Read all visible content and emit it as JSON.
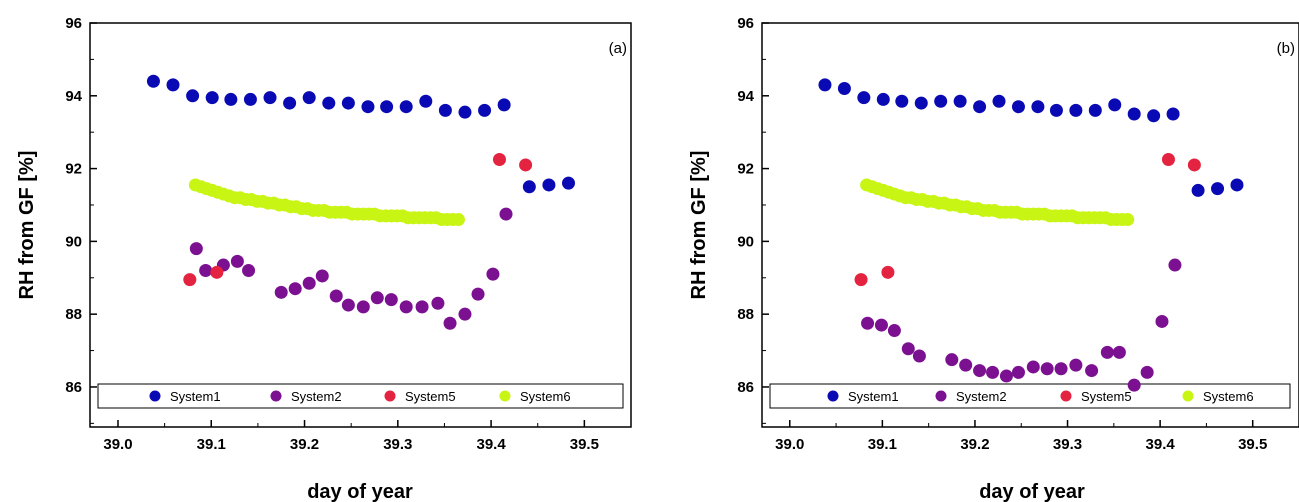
{
  "colors": {
    "System1": "#0a0ab4",
    "System2": "#7b1090",
    "System5": "#e3233f",
    "System6": "#c8f514"
  },
  "chart_data": [
    {
      "type": "scatter",
      "panel_label": "(a)",
      "xlabel": "day of year",
      "ylabel": "RH from GF [%]",
      "xlim": [
        38.97,
        39.55
      ],
      "ylim": [
        84.9,
        96
      ],
      "xticks": [
        "39.0",
        "39.1",
        "39.2",
        "39.3",
        "39.4",
        "39.5"
      ],
      "yticks": [
        "86",
        "88",
        "90",
        "92",
        "94",
        "96"
      ],
      "legend": {
        "placement": "bottom",
        "entries": [
          "System1",
          "System2",
          "System5",
          "System6"
        ]
      },
      "series": [
        {
          "name": "System1",
          "x": [
            39.038,
            39.059,
            39.08,
            39.101,
            39.121,
            39.142,
            39.163,
            39.184,
            39.205,
            39.226,
            39.247,
            39.268,
            39.288,
            39.309,
            39.33,
            39.351,
            39.372,
            39.393,
            39.414,
            39.441,
            39.462,
            39.483
          ],
          "y": [
            94.4,
            94.3,
            94.0,
            93.95,
            93.9,
            93.9,
            93.95,
            93.8,
            93.95,
            93.8,
            93.8,
            93.7,
            93.7,
            93.7,
            93.85,
            93.6,
            93.55,
            93.6,
            93.75,
            91.5,
            91.55,
            91.6
          ]
        },
        {
          "name": "System2",
          "x": [
            39.084,
            39.094,
            39.113,
            39.128,
            39.14,
            39.175,
            39.19,
            39.205,
            39.219,
            39.234,
            39.247,
            39.263,
            39.278,
            39.293,
            39.309,
            39.326,
            39.343,
            39.356,
            39.372,
            39.386,
            39.402,
            39.416
          ],
          "y": [
            89.8,
            89.2,
            89.35,
            89.45,
            89.2,
            88.6,
            88.7,
            88.85,
            89.05,
            88.5,
            88.25,
            88.2,
            88.45,
            88.4,
            88.2,
            88.2,
            88.3,
            87.75,
            88.0,
            88.55,
            89.1,
            90.75
          ]
        },
        {
          "name": "System5",
          "x": [
            39.077,
            39.106,
            39.409,
            39.437
          ],
          "y": [
            88.95,
            89.15,
            92.25,
            92.1
          ]
        },
        {
          "name": "System6",
          "x": [
            39.083,
            39.089,
            39.095,
            39.101,
            39.107,
            39.113,
            39.119,
            39.125,
            39.131,
            39.137,
            39.143,
            39.149,
            39.155,
            39.161,
            39.167,
            39.173,
            39.179,
            39.185,
            39.191,
            39.197,
            39.203,
            39.209,
            39.215,
            39.221,
            39.227,
            39.233,
            39.239,
            39.245,
            39.251,
            39.257,
            39.263,
            39.269,
            39.275,
            39.281,
            39.287,
            39.293,
            39.299,
            39.305,
            39.311,
            39.317,
            39.323,
            39.329,
            39.335,
            39.341,
            39.347,
            39.353,
            39.359,
            39.365
          ],
          "y": [
            91.55,
            91.5,
            91.45,
            91.4,
            91.35,
            91.3,
            91.25,
            91.2,
            91.2,
            91.15,
            91.15,
            91.1,
            91.1,
            91.05,
            91.05,
            91.0,
            91.0,
            90.95,
            90.95,
            90.9,
            90.9,
            90.85,
            90.85,
            90.85,
            90.8,
            90.8,
            90.8,
            90.8,
            90.75,
            90.75,
            90.75,
            90.75,
            90.75,
            90.7,
            90.7,
            90.7,
            90.7,
            90.7,
            90.65,
            90.65,
            90.65,
            90.65,
            90.65,
            90.65,
            90.6,
            90.6,
            90.6,
            90.6
          ]
        }
      ]
    },
    {
      "type": "scatter",
      "panel_label": "(b)",
      "xlabel": "day of year",
      "ylabel": "RH from GF [%]",
      "xlim": [
        38.97,
        39.55
      ],
      "ylim": [
        84.9,
        96
      ],
      "xticks": [
        "39.0",
        "39.1",
        "39.2",
        "39.3",
        "39.4",
        "39.5"
      ],
      "yticks": [
        "86",
        "88",
        "90",
        "92",
        "94",
        "96"
      ],
      "legend": {
        "placement": "bottom",
        "entries": [
          "System1",
          "System2",
          "System5",
          "System6"
        ]
      },
      "series": [
        {
          "name": "System1",
          "x": [
            39.038,
            39.059,
            39.08,
            39.101,
            39.121,
            39.142,
            39.163,
            39.184,
            39.205,
            39.226,
            39.247,
            39.268,
            39.288,
            39.309,
            39.33,
            39.351,
            39.372,
            39.393,
            39.414,
            39.441,
            39.462,
            39.483
          ],
          "y": [
            94.3,
            94.2,
            93.95,
            93.9,
            93.85,
            93.8,
            93.85,
            93.85,
            93.7,
            93.85,
            93.7,
            93.7,
            93.6,
            93.6,
            93.6,
            93.75,
            93.5,
            93.45,
            93.5,
            91.4,
            91.45,
            91.55
          ]
        },
        {
          "name": "System2",
          "x": [
            39.084,
            39.099,
            39.113,
            39.128,
            39.14,
            39.175,
            39.19,
            39.205,
            39.219,
            39.234,
            39.247,
            39.263,
            39.278,
            39.293,
            39.309,
            39.326,
            39.343,
            39.356,
            39.372,
            39.386,
            39.402,
            39.416
          ],
          "y": [
            87.75,
            87.7,
            87.55,
            87.05,
            86.85,
            86.75,
            86.6,
            86.45,
            86.4,
            86.3,
            86.4,
            86.55,
            86.5,
            86.5,
            86.6,
            86.45,
            86.95,
            86.95,
            86.05,
            86.4,
            87.8,
            89.35
          ]
        },
        {
          "name": "System5",
          "x": [
            39.077,
            39.106,
            39.409,
            39.437
          ],
          "y": [
            88.95,
            89.15,
            92.25,
            92.1
          ]
        },
        {
          "name": "System6",
          "x": [
            39.083,
            39.089,
            39.095,
            39.101,
            39.107,
            39.113,
            39.119,
            39.125,
            39.131,
            39.137,
            39.143,
            39.149,
            39.155,
            39.161,
            39.167,
            39.173,
            39.179,
            39.185,
            39.191,
            39.197,
            39.203,
            39.209,
            39.215,
            39.221,
            39.227,
            39.233,
            39.239,
            39.245,
            39.251,
            39.257,
            39.263,
            39.269,
            39.275,
            39.281,
            39.287,
            39.293,
            39.299,
            39.305,
            39.311,
            39.317,
            39.323,
            39.329,
            39.335,
            39.341,
            39.347,
            39.353,
            39.359,
            39.365
          ],
          "y": [
            91.55,
            91.5,
            91.45,
            91.4,
            91.35,
            91.3,
            91.25,
            91.2,
            91.2,
            91.15,
            91.15,
            91.1,
            91.1,
            91.05,
            91.05,
            91.0,
            91.0,
            90.95,
            90.95,
            90.9,
            90.9,
            90.85,
            90.85,
            90.85,
            90.8,
            90.8,
            90.8,
            90.8,
            90.75,
            90.75,
            90.75,
            90.75,
            90.75,
            90.7,
            90.7,
            90.7,
            90.7,
            90.7,
            90.65,
            90.65,
            90.65,
            90.65,
            90.65,
            90.65,
            90.6,
            90.6,
            90.6,
            90.6
          ]
        }
      ]
    }
  ]
}
